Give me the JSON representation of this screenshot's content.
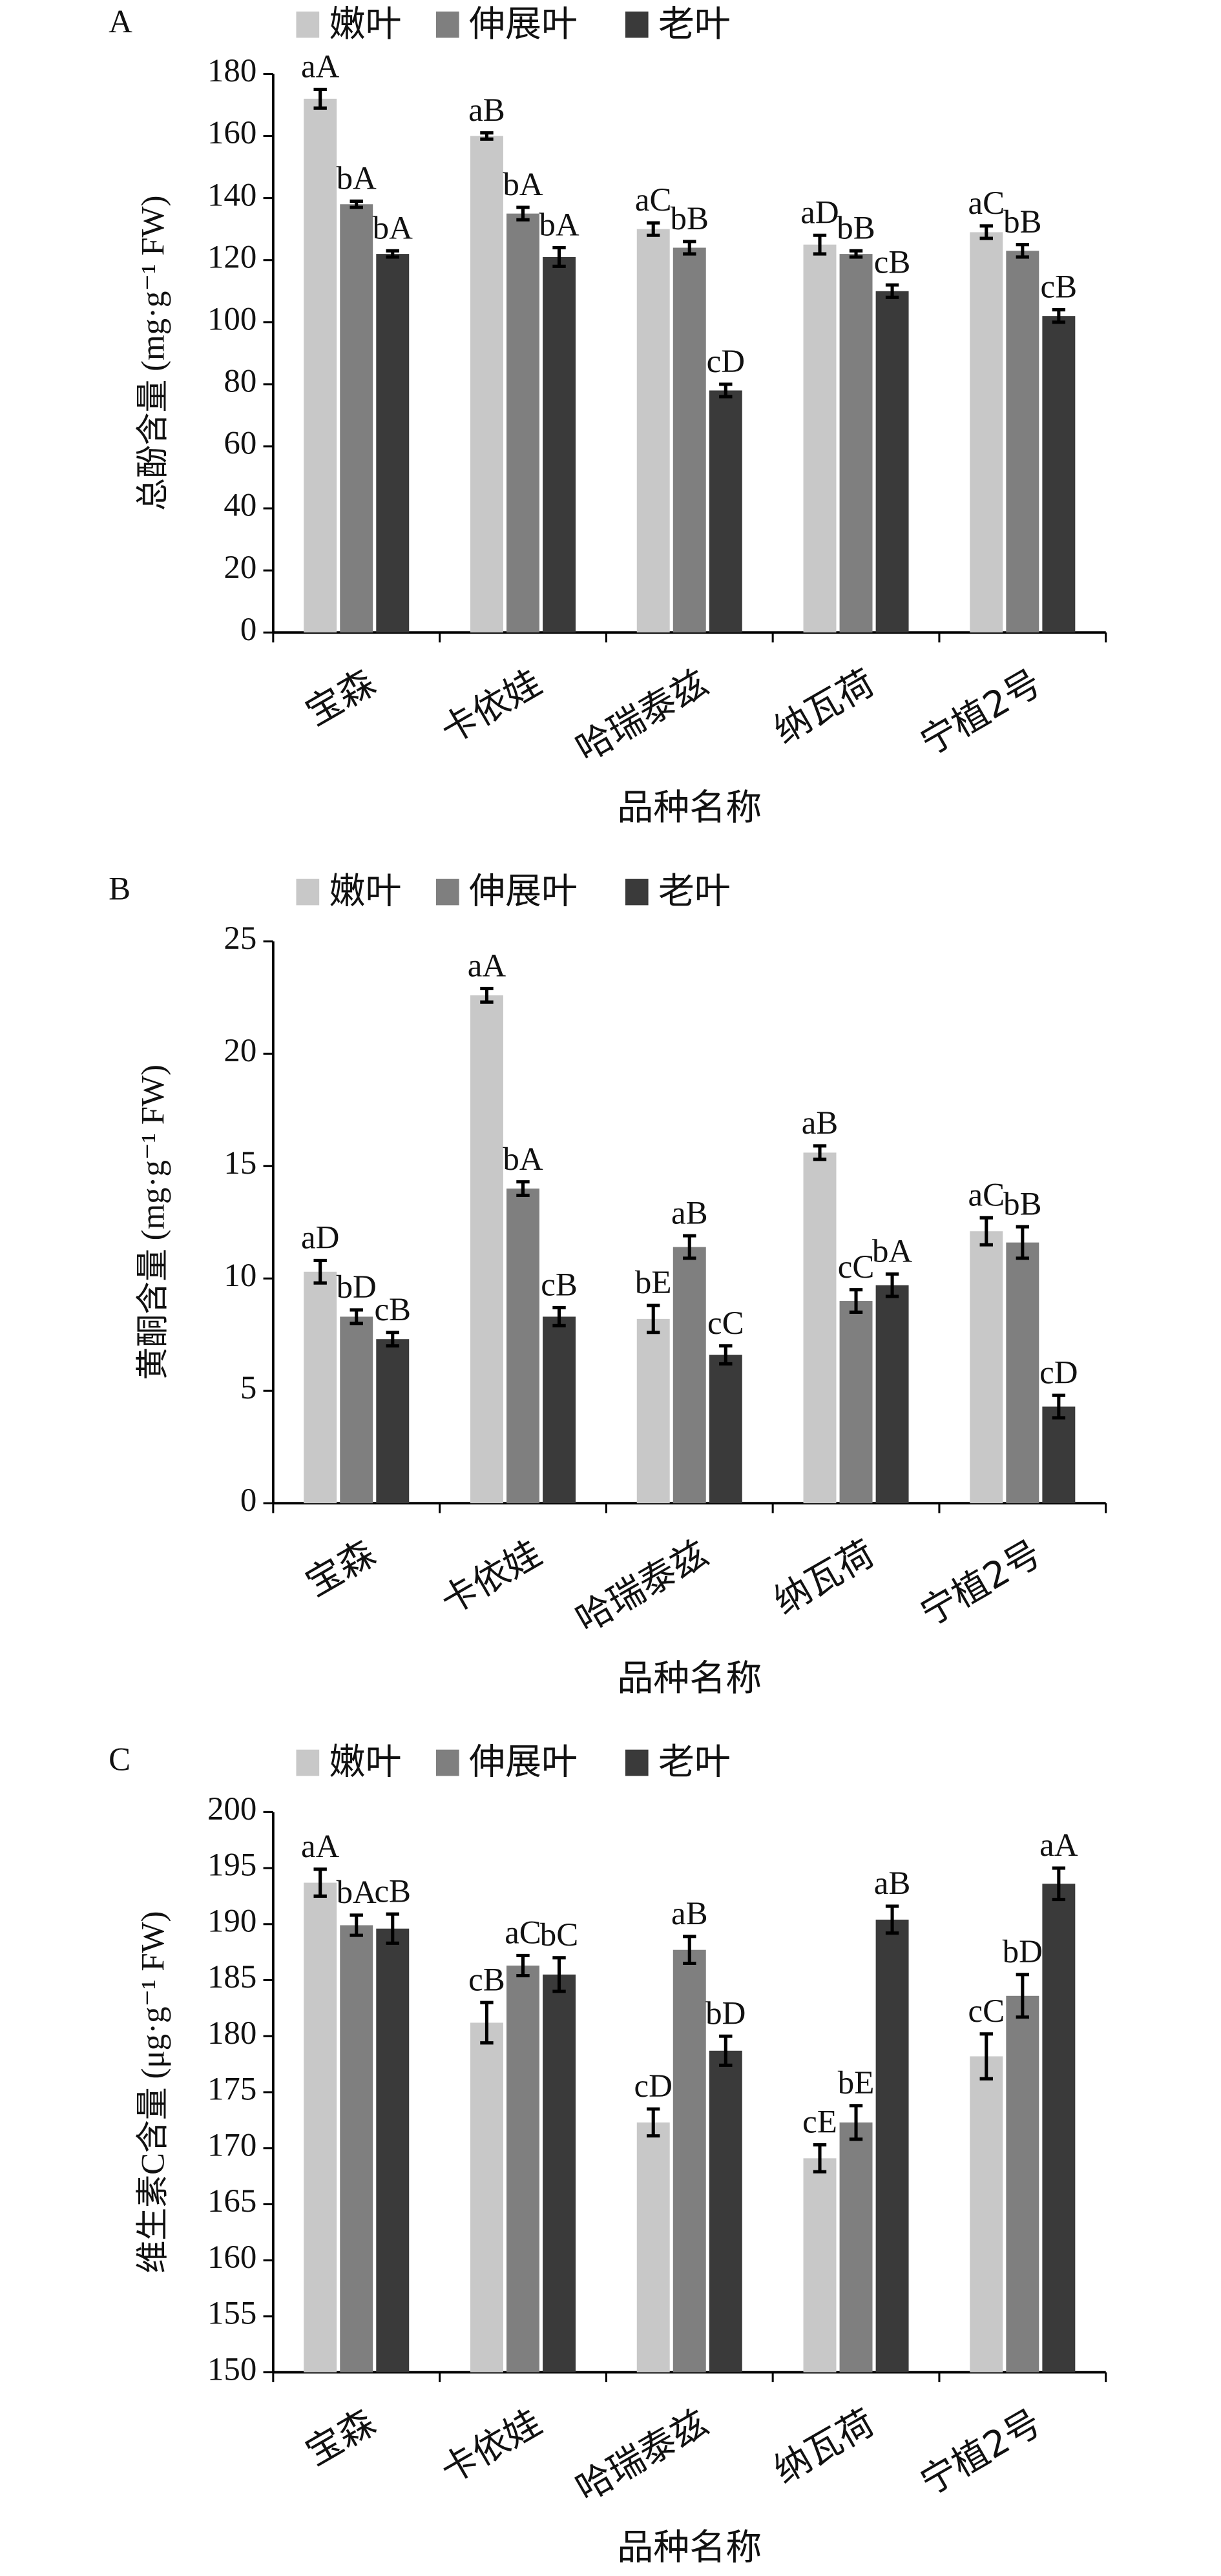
{
  "chart_data": [
    {
      "type": "bar",
      "panel": "A",
      "y_label": "总酚含量 (mg·g⁻¹ FW)",
      "x_label": "品种名称",
      "categories": [
        "宝森",
        "卡依娃",
        "哈瑞泰兹",
        "纳瓦荷",
        "宁植2号"
      ],
      "ylim": [
        0,
        180
      ],
      "yticks": [
        0,
        20,
        40,
        60,
        80,
        100,
        120,
        140,
        160,
        180
      ],
      "series": [
        {
          "name": "嫩叶",
          "color": "#c8c8c8",
          "values": [
            172,
            160,
            130,
            125,
            129
          ],
          "errors": [
            3,
            1,
            2,
            3,
            2
          ],
          "letters": [
            "aA",
            "aB",
            "aC",
            "aD",
            "aC"
          ]
        },
        {
          "name": "伸展叶",
          "color": "#7f7f7f",
          "values": [
            138,
            135,
            124,
            122,
            123
          ],
          "errors": [
            1,
            2,
            2,
            1,
            2
          ],
          "letters": [
            "bA",
            "bA",
            "bB",
            "bB",
            "bB"
          ]
        },
        {
          "name": "老叶",
          "color": "#3a3a3a",
          "values": [
            122,
            121,
            78,
            110,
            102
          ],
          "errors": [
            1,
            3,
            2,
            2,
            2
          ],
          "letters": [
            "bA",
            "bA",
            "cD",
            "cB",
            "cB"
          ]
        }
      ]
    },
    {
      "type": "bar",
      "panel": "B",
      "y_label": "黄酮含量 (mg·g⁻¹ FW)",
      "x_label": "品种名称",
      "categories": [
        "宝森",
        "卡依娃",
        "哈瑞泰兹",
        "纳瓦荷",
        "宁植2号"
      ],
      "ylim": [
        0,
        25
      ],
      "yticks": [
        0,
        5,
        10,
        15,
        20,
        25
      ],
      "series": [
        {
          "name": "嫩叶",
          "color": "#c8c8c8",
          "values": [
            10.3,
            22.6,
            8.2,
            15.6,
            12.1
          ],
          "errors": [
            0.5,
            0.3,
            0.6,
            0.3,
            0.6
          ],
          "letters": [
            "aD",
            "aA",
            "bE",
            "aB",
            "aC"
          ]
        },
        {
          "name": "伸展叶",
          "color": "#7f7f7f",
          "values": [
            8.3,
            14.0,
            11.4,
            9.0,
            11.6
          ],
          "errors": [
            0.3,
            0.3,
            0.5,
            0.5,
            0.7
          ],
          "letters": [
            "bD",
            "bA",
            "aB",
            "cC",
            "bB"
          ]
        },
        {
          "name": "老叶",
          "color": "#3a3a3a",
          "values": [
            7.3,
            8.3,
            6.6,
            9.7,
            4.3
          ],
          "errors": [
            0.3,
            0.4,
            0.4,
            0.5,
            0.5
          ],
          "letters": [
            "cB",
            "cB",
            "cC",
            "bA",
            "cD"
          ]
        }
      ]
    },
    {
      "type": "bar",
      "panel": "C",
      "y_label": "维生素C含量 (μg·g⁻¹ FW)",
      "x_label": "品种名称",
      "categories": [
        "宝森",
        "卡依娃",
        "哈瑞泰兹",
        "纳瓦荷",
        "宁植2号"
      ],
      "ylim": [
        150,
        200
      ],
      "yticks": [
        150,
        155,
        160,
        165,
        170,
        175,
        180,
        185,
        190,
        195,
        200
      ],
      "series": [
        {
          "name": "嫩叶",
          "color": "#c8c8c8",
          "values": [
            193.7,
            181.2,
            172.3,
            169.1,
            178.2
          ],
          "errors": [
            1.2,
            1.8,
            1.2,
            1.2,
            2.0
          ],
          "letters": [
            "aA",
            "cB",
            "cD",
            "cE",
            "cC"
          ]
        },
        {
          "name": "伸展叶",
          "color": "#7f7f7f",
          "values": [
            189.9,
            186.3,
            187.7,
            172.3,
            183.6
          ],
          "errors": [
            0.9,
            0.9,
            1.2,
            1.5,
            1.9
          ],
          "letters": [
            "bA",
            "aC",
            "aB",
            "bE",
            "bD"
          ]
        },
        {
          "name": "老叶",
          "color": "#3a3a3a",
          "values": [
            189.6,
            185.5,
            178.7,
            190.4,
            193.6
          ],
          "errors": [
            1.3,
            1.5,
            1.3,
            1.2,
            1.4
          ],
          "letters": [
            "cB",
            "bC",
            "bD",
            "aB",
            "aA"
          ]
        }
      ]
    }
  ]
}
